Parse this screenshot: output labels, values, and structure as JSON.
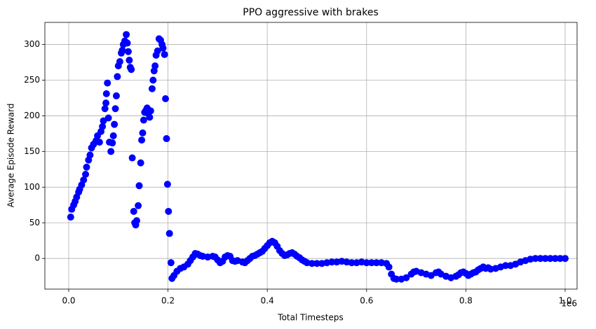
{
  "chart_data": {
    "type": "scatter",
    "title": "PPO aggressive with brakes",
    "x_label": "Total Timesteps",
    "y_label": "Average Episode Reward",
    "x_offset_label": "1e6",
    "color": "blue",
    "grid": true,
    "xlim": [
      -0.048,
      1.024
    ],
    "ylim": [
      -43,
      331
    ],
    "xticks": [
      {
        "value": 0,
        "label": "0.0"
      },
      0.2,
      0.4,
      0.6,
      0.8,
      {
        "value": 1,
        "label": "1.0"
      }
    ],
    "yticks": [
      0,
      50,
      100,
      150,
      200,
      250,
      300
    ],
    "x": [
      0.004,
      0.006,
      0.01,
      0.013,
      0.016,
      0.02,
      0.022,
      0.026,
      0.03,
      0.034,
      0.036,
      0.04,
      0.043,
      0.046,
      0.05,
      0.055,
      0.058,
      0.062,
      0.065,
      0.068,
      0.07,
      0.073,
      0.075,
      0.076,
      0.078,
      0.08,
      0.082,
      0.085,
      0.088,
      0.09,
      0.092,
      0.094,
      0.096,
      0.098,
      0.1,
      0.103,
      0.106,
      0.108,
      0.11,
      0.113,
      0.116,
      0.118,
      0.12,
      0.122,
      0.124,
      0.126,
      0.128,
      0.131,
      0.133,
      0.135,
      0.137,
      0.14,
      0.142,
      0.145,
      0.147,
      0.149,
      0.151,
      0.153,
      0.156,
      0.158,
      0.16,
      0.163,
      0.165,
      0.168,
      0.17,
      0.172,
      0.174,
      0.176,
      0.179,
      0.182,
      0.185,
      0.188,
      0.19,
      0.193,
      0.195,
      0.197,
      0.199,
      0.201,
      0.203,
      0.206,
      0.208,
      0.212,
      0.218,
      0.225,
      0.232,
      0.24,
      0.245,
      0.25,
      0.255,
      0.26,
      0.265,
      0.27,
      0.28,
      0.29,
      0.295,
      0.3,
      0.305,
      0.31,
      0.315,
      0.32,
      0.325,
      0.33,
      0.335,
      0.34,
      0.35,
      0.355,
      0.36,
      0.365,
      0.37,
      0.375,
      0.38,
      0.385,
      0.39,
      0.395,
      0.4,
      0.405,
      0.41,
      0.415,
      0.42,
      0.425,
      0.43,
      0.435,
      0.44,
      0.445,
      0.45,
      0.455,
      0.46,
      0.465,
      0.47,
      0.475,
      0.48,
      0.49,
      0.5,
      0.51,
      0.52,
      0.53,
      0.54,
      0.55,
      0.56,
      0.57,
      0.58,
      0.59,
      0.6,
      0.61,
      0.62,
      0.63,
      0.64,
      0.645,
      0.65,
      0.655,
      0.66,
      0.67,
      0.68,
      0.69,
      0.695,
      0.7,
      0.71,
      0.72,
      0.73,
      0.74,
      0.745,
      0.75,
      0.76,
      0.77,
      0.78,
      0.785,
      0.79,
      0.795,
      0.8,
      0.805,
      0.81,
      0.815,
      0.82,
      0.825,
      0.83,
      0.835,
      0.84,
      0.845,
      0.85,
      0.86,
      0.87,
      0.88,
      0.89,
      0.9,
      0.91,
      0.92,
      0.93,
      0.94,
      0.95,
      0.96,
      0.97,
      0.98,
      0.99,
      1.0
    ],
    "values": [
      58,
      69,
      75,
      80,
      86,
      93,
      97,
      103,
      110,
      118,
      128,
      138,
      145,
      155,
      160,
      165,
      172,
      163,
      178,
      185,
      193,
      210,
      218,
      231,
      246,
      197,
      163,
      150,
      162,
      172,
      188,
      210,
      228,
      255,
      270,
      276,
      288,
      292,
      300,
      305,
      314,
      302,
      290,
      278,
      268,
      265,
      141,
      66,
      50,
      47,
      53,
      74,
      102,
      134,
      166,
      176,
      194,
      205,
      208,
      211,
      203,
      198,
      207,
      238,
      250,
      263,
      270,
      285,
      291,
      308,
      306,
      300,
      295,
      286,
      224,
      168,
      104,
      66,
      35,
      -6,
      -28,
      -24,
      -18,
      -14,
      -12,
      -8,
      -3,
      2,
      7,
      6,
      4,
      3,
      2,
      3,
      2,
      -2,
      -6,
      -4,
      2,
      4,
      3,
      -3,
      -4,
      -3,
      -5,
      -6,
      -3,
      0,
      3,
      4,
      6,
      8,
      10,
      14,
      18,
      22,
      24,
      22,
      17,
      11,
      7,
      4,
      5,
      7,
      8,
      6,
      3,
      1,
      -2,
      -4,
      -6,
      -7,
      -7,
      -7,
      -6,
      -5,
      -5,
      -4,
      -5,
      -6,
      -6,
      -5,
      -6,
      -6,
      -6,
      -6,
      -7,
      -12,
      -22,
      -28,
      -29,
      -29,
      -27,
      -22,
      -19,
      -18,
      -20,
      -22,
      -24,
      -20,
      -19,
      -22,
      -25,
      -27,
      -25,
      -23,
      -20,
      -19,
      -21,
      -24,
      -22,
      -20,
      -19,
      -16,
      -14,
      -12,
      -14,
      -13,
      -15,
      -14,
      -12,
      -10,
      -10,
      -8,
      -5,
      -3,
      -1,
      0,
      0,
      0,
      0,
      0,
      0,
      0
    ]
  }
}
